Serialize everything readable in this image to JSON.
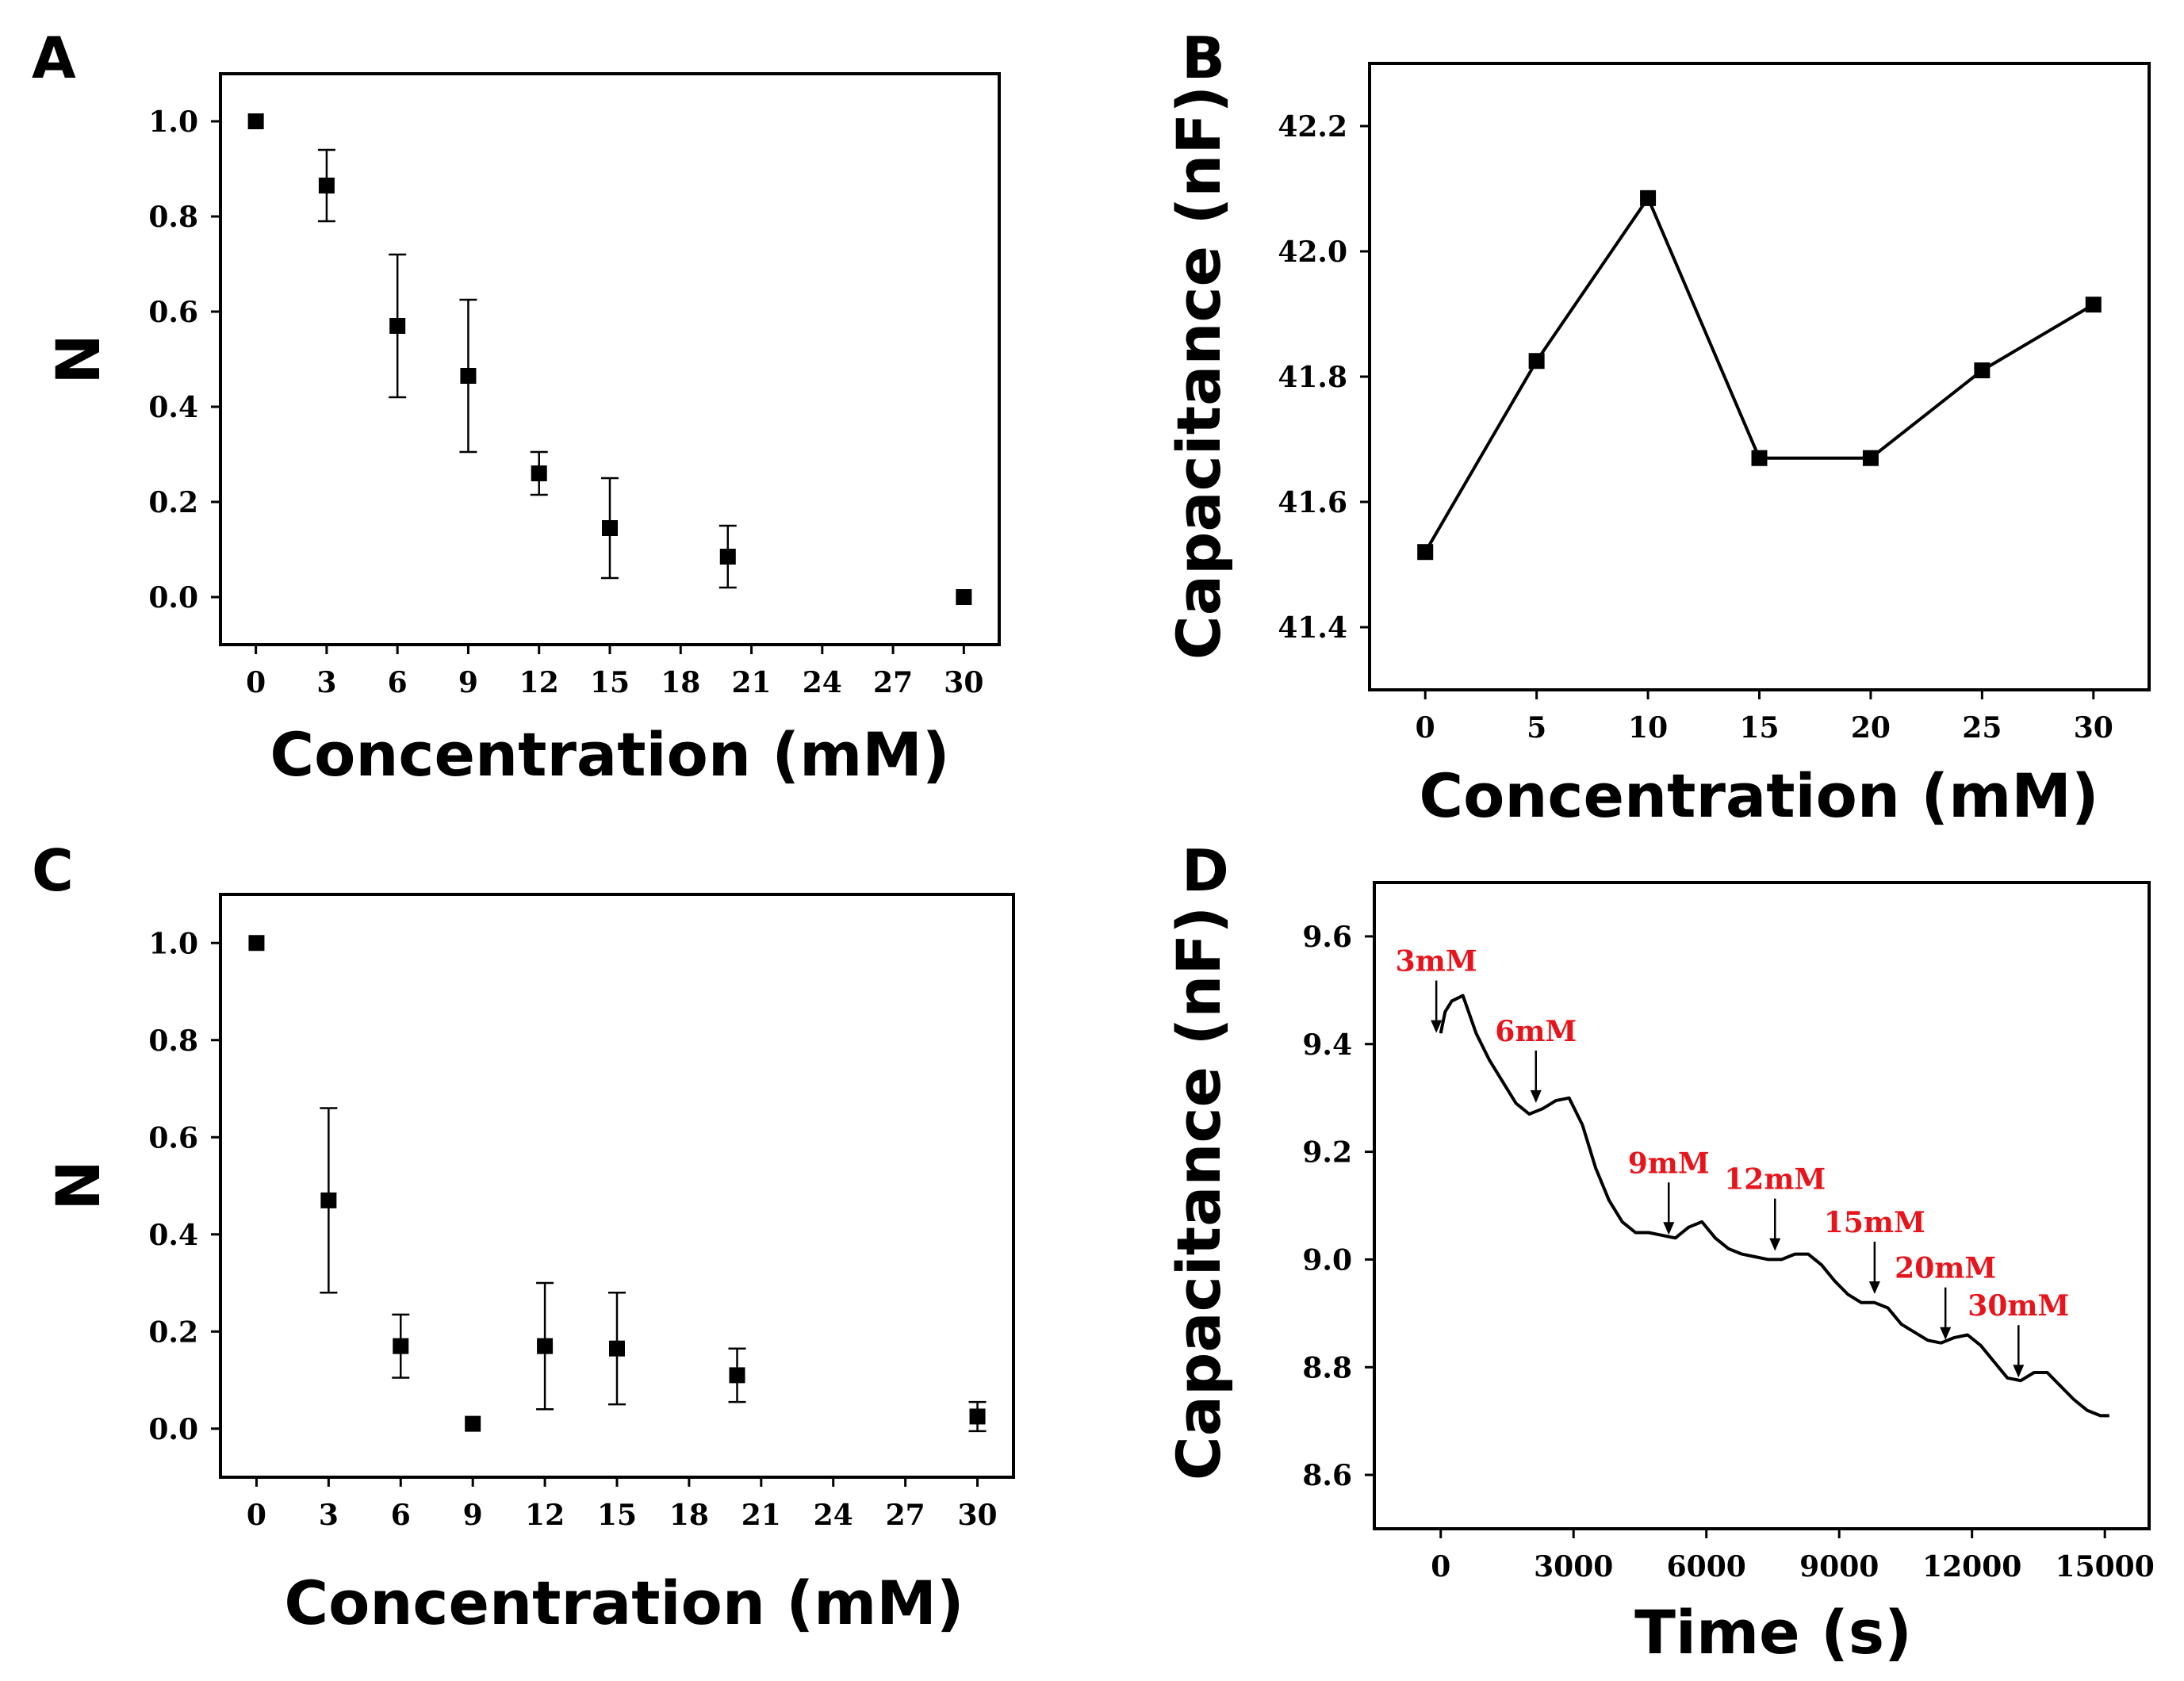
{
  "chart_data": [
    {
      "panel": "A",
      "type": "scatter",
      "xlabel": "Concentration (mM)",
      "ylabel": "N",
      "xlim": [
        -1.5,
        31.5
      ],
      "ylim": [
        -0.1,
        1.1
      ],
      "xticks": [
        0,
        3,
        6,
        9,
        12,
        15,
        18,
        21,
        24,
        27,
        30
      ],
      "xtick_labels": [
        "0",
        "3",
        "6",
        "9",
        "12",
        "15",
        "18",
        "21",
        "24",
        "27",
        "30"
      ],
      "yticks": [
        0.0,
        0.2,
        0.4,
        0.6,
        0.8,
        1.0
      ],
      "ytick_labels": [
        "0.0",
        "0.2",
        "0.4",
        "0.6",
        "0.8",
        "1.0"
      ],
      "series": [
        {
          "name": "N",
          "x": [
            0,
            3,
            6,
            9,
            12,
            15,
            20,
            30
          ],
          "y": [
            1.0,
            0.865,
            0.57,
            0.465,
            0.26,
            0.145,
            0.085,
            0.0
          ],
          "err": [
            0,
            0.075,
            0.15,
            0.16,
            0.045,
            0.105,
            0.065,
            0
          ]
        }
      ]
    },
    {
      "panel": "B",
      "type": "line",
      "xlabel": "Concentration (mM)",
      "ylabel": "Capacitance (nF)",
      "xlim": [
        -2.5,
        32.5
      ],
      "ylim": [
        41.3,
        42.3
      ],
      "xticks": [
        0,
        5,
        10,
        15,
        20,
        25,
        30
      ],
      "xtick_labels": [
        "0",
        "5",
        "10",
        "15",
        "20",
        "25",
        "30"
      ],
      "yticks": [
        41.4,
        41.6,
        41.8,
        42.0,
        42.2
      ],
      "ytick_labels": [
        "41.4",
        "41.6",
        "41.8",
        "42.0",
        "42.2"
      ],
      "series": [
        {
          "name": "Capacitance",
          "x": [
            0,
            5,
            10,
            15,
            20,
            25,
            30
          ],
          "y": [
            41.52,
            41.825,
            42.085,
            41.67,
            41.67,
            41.81,
            41.915
          ]
        }
      ]
    },
    {
      "panel": "C",
      "type": "scatter",
      "xlabel": "Concentration (mM)",
      "ylabel": "N",
      "xlim": [
        -1.5,
        31.5
      ],
      "ylim": [
        -0.1,
        1.1
      ],
      "xticks": [
        0,
        3,
        6,
        9,
        12,
        15,
        18,
        21,
        24,
        27,
        30
      ],
      "xtick_labels": [
        "0",
        "3",
        "6",
        "9",
        "12",
        "15",
        "18",
        "21",
        "24",
        "27",
        "30"
      ],
      "yticks": [
        0.0,
        0.2,
        0.4,
        0.6,
        0.8,
        1.0
      ],
      "ytick_labels": [
        "0.0",
        "0.2",
        "0.4",
        "0.6",
        "0.8",
        "1.0"
      ],
      "series": [
        {
          "name": "N",
          "x": [
            0,
            3,
            6,
            9,
            12,
            15,
            20,
            30
          ],
          "y": [
            1.0,
            0.47,
            0.17,
            0.01,
            0.17,
            0.165,
            0.11,
            0.025
          ],
          "err": [
            0,
            0.19,
            0.065,
            0,
            0.13,
            0.115,
            0.055,
            0.03
          ]
        }
      ]
    },
    {
      "panel": "D",
      "type": "line",
      "xlabel": "Time (s)",
      "ylabel": "Capacitance (nF)",
      "xlim": [
        -1500,
        16000
      ],
      "ylim": [
        8.5,
        9.7
      ],
      "xticks": [
        0,
        3000,
        6000,
        9000,
        12000,
        15000
      ],
      "xtick_labels": [
        "0",
        "3000",
        "6000",
        "9000",
        "12000",
        "15000"
      ],
      "yticks": [
        8.6,
        8.8,
        9.0,
        9.2,
        9.4,
        9.6
      ],
      "ytick_labels": [
        "8.6",
        "8.8",
        "9.0",
        "9.2",
        "9.4",
        "9.6"
      ],
      "series": [
        {
          "name": "Capacitance",
          "x": [
            0,
            100,
            250,
            500,
            800,
            1100,
            1400,
            1700,
            2000,
            2300,
            2600,
            2900,
            3200,
            3500,
            3800,
            4100,
            4400,
            4700,
            5000,
            5300,
            5600,
            5900,
            6200,
            6500,
            6800,
            7100,
            7400,
            7700,
            8000,
            8300,
            8600,
            8900,
            9200,
            9500,
            9800,
            10100,
            10400,
            10700,
            11000,
            11300,
            11600,
            11900,
            12200,
            12500,
            12800,
            13100,
            13400,
            13700,
            14000,
            14300,
            14600,
            14900,
            15100
          ],
          "y": [
            9.42,
            9.46,
            9.48,
            9.49,
            9.42,
            9.37,
            9.33,
            9.29,
            9.27,
            9.28,
            9.295,
            9.3,
            9.25,
            9.17,
            9.11,
            9.07,
            9.05,
            9.05,
            9.045,
            9.04,
            9.06,
            9.07,
            9.04,
            9.02,
            9.01,
            9.005,
            9.0,
            9.0,
            9.01,
            9.01,
            8.99,
            8.96,
            8.935,
            8.92,
            8.92,
            8.91,
            8.88,
            8.865,
            8.85,
            8.845,
            8.855,
            8.86,
            8.84,
            8.81,
            8.78,
            8.775,
            8.79,
            8.79,
            8.765,
            8.74,
            8.72,
            8.71,
            8.71
          ]
        }
      ],
      "annotations": [
        {
          "text": "3mM",
          "x": -100,
          "y": 9.415
        },
        {
          "text": "6mM",
          "x": 2150,
          "y": 9.285
        },
        {
          "text": "9mM",
          "x": 5150,
          "y": 9.04
        },
        {
          "text": "12mM",
          "x": 7550,
          "y": 9.01
        },
        {
          "text": "15mM",
          "x": 9800,
          "y": 8.93
        },
        {
          "text": "20mM",
          "x": 11400,
          "y": 8.845
        },
        {
          "text": "30mM",
          "x": 13050,
          "y": 8.775
        }
      ]
    }
  ]
}
